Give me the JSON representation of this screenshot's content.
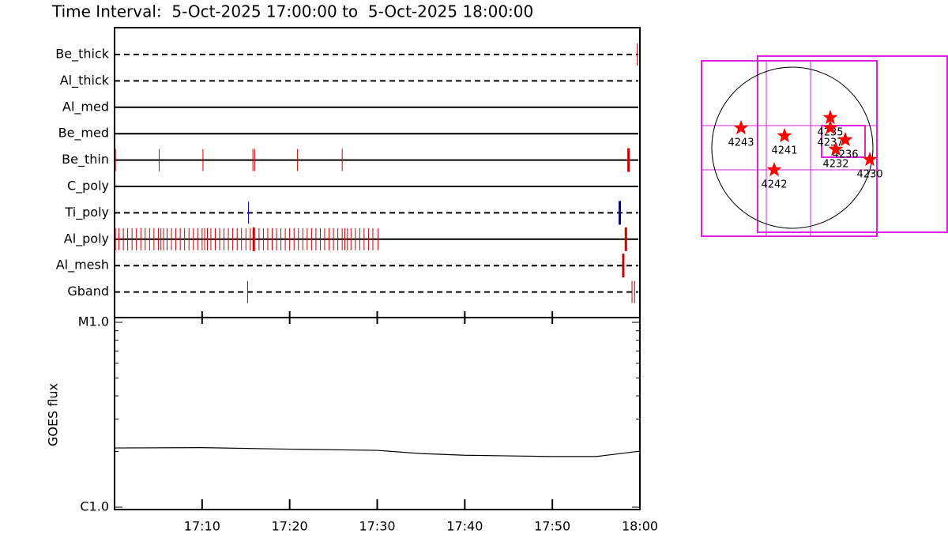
{
  "title": "Time Interval:  5-Oct-2025 17:00:00 to  5-Oct-2025 18:00:00",
  "chart_data": [
    {
      "type": "timeline",
      "xlim": [
        0,
        60
      ],
      "rows": [
        {
          "name": "Be_thick",
          "line": "dashed",
          "color": "#d00000",
          "events": [
            59.7
          ],
          "long_events": []
        },
        {
          "name": "Al_thick",
          "line": "dashed",
          "color": "#d00000",
          "events": [],
          "long_events": []
        },
        {
          "name": "Al_med",
          "line": "solid",
          "color": "#d00000",
          "events": [],
          "long_events": []
        },
        {
          "name": "Be_med",
          "line": "solid",
          "color": "#d00000",
          "events": [],
          "long_events": []
        },
        {
          "name": "Be_thin",
          "line": "solid",
          "color": "#d00000",
          "events": [
            0.1,
            5.1,
            10.1,
            15.8,
            16.0,
            20.9,
            26.0
          ],
          "long_events": [
            58.7
          ]
        },
        {
          "name": "C_poly",
          "line": "solid",
          "color": "#d00000",
          "events": [],
          "long_events": []
        },
        {
          "name": "Ti_poly",
          "line": "dashed",
          "color": "#0000c0",
          "events": [
            15.3
          ],
          "long_events": [
            57.7
          ]
        },
        {
          "name": "Al_poly",
          "line": "solid",
          "color": "#d00000",
          "events": [
            0.1,
            0.5,
            1.0,
            1.5,
            2.0,
            2.5,
            3.0,
            3.5,
            4.0,
            4.5,
            5.0,
            5.3,
            5.6,
            6.0,
            6.5,
            7.0,
            7.5,
            8.0,
            8.5,
            9.0,
            9.5,
            10.0,
            10.3,
            10.6,
            11.0,
            11.5,
            12.0,
            12.5,
            13.0,
            13.5,
            14.0,
            14.5,
            15.0,
            15.5,
            16.5,
            17.0,
            17.5,
            18.0,
            18.5,
            19.0,
            19.5,
            20.0,
            20.5,
            21.0,
            21.5,
            22.0,
            22.5,
            23.0,
            23.5,
            24.0,
            24.5,
            25.0,
            25.5,
            26.0,
            26.3,
            26.6,
            27.0,
            27.5,
            28.0,
            28.5,
            29.0,
            29.5,
            30.1
          ],
          "long_events": [
            15.9,
            58.4
          ]
        },
        {
          "name": "Al_mesh",
          "line": "dashed",
          "color": "#d00000",
          "events": [],
          "long_events": [
            58.1
          ]
        },
        {
          "name": "Gband",
          "line": "dashed",
          "color": "#d00000",
          "events": [
            15.2,
            59.1,
            59.4
          ],
          "long_events": []
        }
      ]
    },
    {
      "type": "line",
      "ylabel": "GOES flux",
      "log_scale": true,
      "xlim": [
        0,
        60
      ],
      "xticks": [
        {
          "value": 10,
          "label": "17:10"
        },
        {
          "value": 20,
          "label": "17:20"
        },
        {
          "value": 30,
          "label": "17:30"
        },
        {
          "value": 40,
          "label": "17:40"
        },
        {
          "value": 50,
          "label": "17:50"
        },
        {
          "value": 60,
          "label": "18:00"
        }
      ],
      "ylim": [
        1e-06,
        1e-05
      ],
      "yticks": [
        {
          "value": 1e-06,
          "label": "C1.0"
        },
        {
          "value": 1e-05,
          "label": "M1.0"
        }
      ],
      "yminor": [
        2e-06,
        3e-06,
        4e-06,
        5e-06,
        6e-06,
        7e-06,
        8e-06,
        9e-06
      ],
      "x": [
        0,
        10,
        20,
        30,
        35,
        40,
        50,
        55,
        57,
        60
      ],
      "series": [
        {
          "color": "#000000",
          "values": [
            2.09e-06,
            2.1e-06,
            2.06e-06,
            2.03e-06,
            1.95e-06,
            1.91e-06,
            1.88e-06,
            1.88e-06,
            1.93e-06,
            2.01e-06
          ]
        }
      ]
    }
  ],
  "map": {
    "regions": [
      "4243",
      "4241",
      "4235",
      "4237",
      "4236",
      "4232",
      "4230",
      "4242"
    ]
  }
}
